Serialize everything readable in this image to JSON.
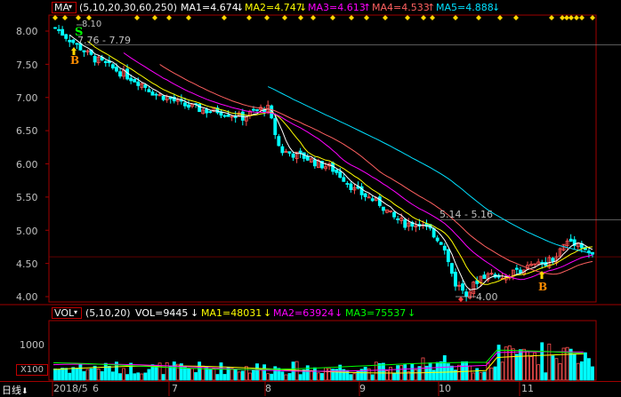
{
  "colors": {
    "background": "#000000",
    "frame": "#a00000",
    "grid": "#800000",
    "up": "#ff5050",
    "down": "#00ffff",
    "ma1": "#ffffff",
    "ma2": "#ffff00",
    "ma3": "#ff00ff",
    "ma4": "#ff6060",
    "ma5": "#00e0ff",
    "marker": "#ffd700",
    "label_text": "#c0c0c0"
  },
  "price_panel": {
    "indicator_button": "MA",
    "params": "(5,10,20,30,60,250)",
    "ma": [
      {
        "label": "MA1=4.674",
        "arrow": "↓",
        "color": "#ffffff"
      },
      {
        "label": "MA2=4.747",
        "arrow": "↓",
        "color": "#ffff00"
      },
      {
        "label": "MA3=4.613",
        "arrow": "↑",
        "color": "#ff00ff"
      },
      {
        "label": "MA4=4.533",
        "arrow": "↑",
        "color": "#ff6060"
      },
      {
        "label": "MA5=4.888",
        "arrow": "↓",
        "color": "#00e0ff"
      }
    ],
    "y_ticks": [
      "8.00",
      "7.50",
      "7.00",
      "6.50",
      "6.00",
      "5.50",
      "5.00",
      "4.50",
      "4.00"
    ],
    "annotations": {
      "high_label": "8.10",
      "resistance1_label": "7.76 - 7.79",
      "resistance2_label": "5.14 - 5.16",
      "low_label": "4.00",
      "sell_marker": "S",
      "buy_marker_1": "B",
      "buy_marker_2": "B"
    }
  },
  "volume_panel": {
    "indicator_button": "VOL",
    "params": "(5,10,20)",
    "vol": {
      "label": "VOL=9445",
      "arrow": "↓",
      "color": "#ffffff"
    },
    "ma": [
      {
        "label": "MA1=48031",
        "arrow": "↓",
        "color": "#ffff00"
      },
      {
        "label": "MA2=63924",
        "arrow": "↓",
        "color": "#ff00ff"
      },
      {
        "label": "MA3=75537",
        "arrow": "↓",
        "color": "#00ff00"
      }
    ],
    "y_ticks": [
      "1000"
    ],
    "unit_label": "X100"
  },
  "bottom_bar": {
    "period_button": "日线",
    "period_arrow": "⬇",
    "x_labels": [
      "2018/5",
      "6",
      "7",
      "8",
      "9",
      "10",
      "11"
    ]
  },
  "chart_data": {
    "type": "candlestick",
    "x_start_label": "2018/5",
    "months": [
      "5",
      "6",
      "7",
      "8",
      "9",
      "10",
      "11"
    ],
    "price_ylim": [
      3.9,
      8.2
    ],
    "price_grid": [
      4.0,
      4.5,
      5.0,
      5.5,
      6.0,
      6.5,
      7.0,
      7.5,
      8.0
    ],
    "close_path": [
      8.05,
      7.9,
      7.75,
      7.6,
      7.5,
      7.4,
      7.3,
      7.2,
      7.05,
      7.0,
      6.9,
      6.85,
      6.8,
      6.8,
      6.75,
      6.7,
      6.8,
      6.85,
      6.2,
      6.15,
      6.1,
      6.0,
      5.95,
      5.8,
      5.6,
      5.5,
      5.4,
      5.2,
      5.1,
      5.1,
      5.0,
      4.8,
      4.2,
      4.05,
      4.3,
      4.35,
      4.3,
      4.4,
      4.45,
      4.5,
      4.6,
      4.85,
      4.8,
      4.6
    ],
    "ma_path_samples": {
      "MA5": [
        8.0,
        7.95,
        7.8,
        7.55,
        7.35,
        7.1,
        6.95,
        6.85,
        6.85,
        6.55,
        6.35,
        6.2,
        6.1,
        5.95,
        5.7,
        5.55,
        5.35,
        5.1,
        4.95,
        4.7,
        4.5,
        4.4,
        4.45,
        4.55,
        4.7,
        4.75
      ],
      "MA60": [
        null,
        null,
        null,
        null,
        null,
        null,
        7.45,
        7.35,
        7.2,
        7.0,
        6.85,
        6.65,
        6.5,
        6.3,
        6.1,
        5.95,
        5.75,
        5.6,
        5.45,
        5.3,
        5.15,
        5.0,
        4.9,
        4.85,
        4.9,
        4.88
      ]
    },
    "marked_levels": [
      7.79,
      5.16,
      4.6
    ],
    "high": 8.1,
    "low": 4.0
  }
}
